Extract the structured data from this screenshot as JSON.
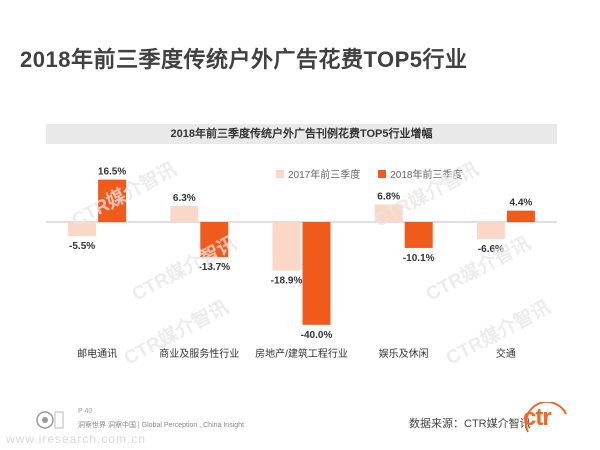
{
  "page": {
    "title": "2018年前三季度传统户外广告花费TOP5行业",
    "page_number": "P 40",
    "footer_text": "洞察世界 洞察中国 | Global Perception , China Insight",
    "source": "数据来源：CTR媒介智讯",
    "watermark_text": "CTR媒介智讯",
    "site_watermark": "www.iresearch.com.cn",
    "brand_logo_text": "ctr"
  },
  "chart_data": {
    "type": "bar",
    "title": "2018年前三季度传统户外广告刊例花费TOP5行业增幅",
    "categories": [
      "邮电通讯",
      "商业及服务性行业",
      "房地产/建筑工程行业",
      "娱乐及休闲",
      "交通"
    ],
    "series": [
      {
        "name": "2017年前三季度",
        "color": "#fad7c6",
        "values": [
          -5.5,
          6.3,
          -18.9,
          6.8,
          -6.6
        ],
        "labels": [
          "-5.5%",
          "6.3%",
          "-18.9%",
          "6.8%",
          "-6.6%"
        ]
      },
      {
        "name": "2018年前三季度",
        "color": "#f05a1a",
        "values": [
          16.5,
          -13.7,
          -40.0,
          -10.1,
          4.4
        ],
        "labels": [
          "16.5%",
          "-13.7%",
          "-40.0%",
          "-10.1%",
          "4.4%"
        ]
      }
    ],
    "legend_position": "top-right",
    "grid": false
  }
}
